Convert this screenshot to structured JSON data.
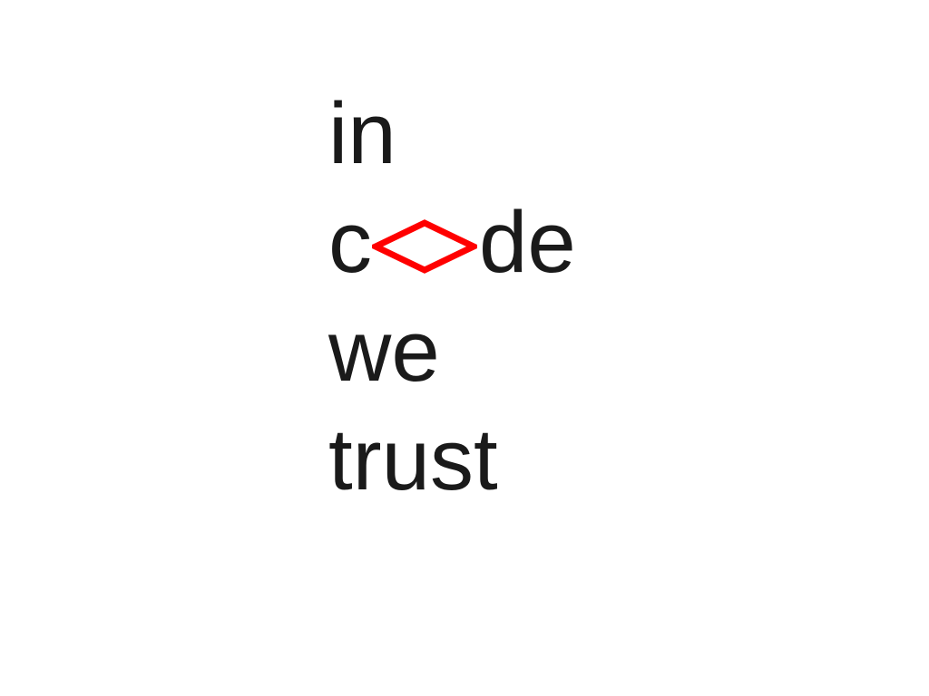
{
  "slide": {
    "lines": [
      {
        "text": "in"
      },
      {
        "prefix": "c",
        "suffix": "de",
        "replaced_letter_icon": "diamond-icon"
      },
      {
        "text": "we"
      },
      {
        "text": "trust"
      }
    ],
    "colors": {
      "text": "#1a1a1a",
      "accent": "#ff0000",
      "background": "#ffffff"
    }
  }
}
